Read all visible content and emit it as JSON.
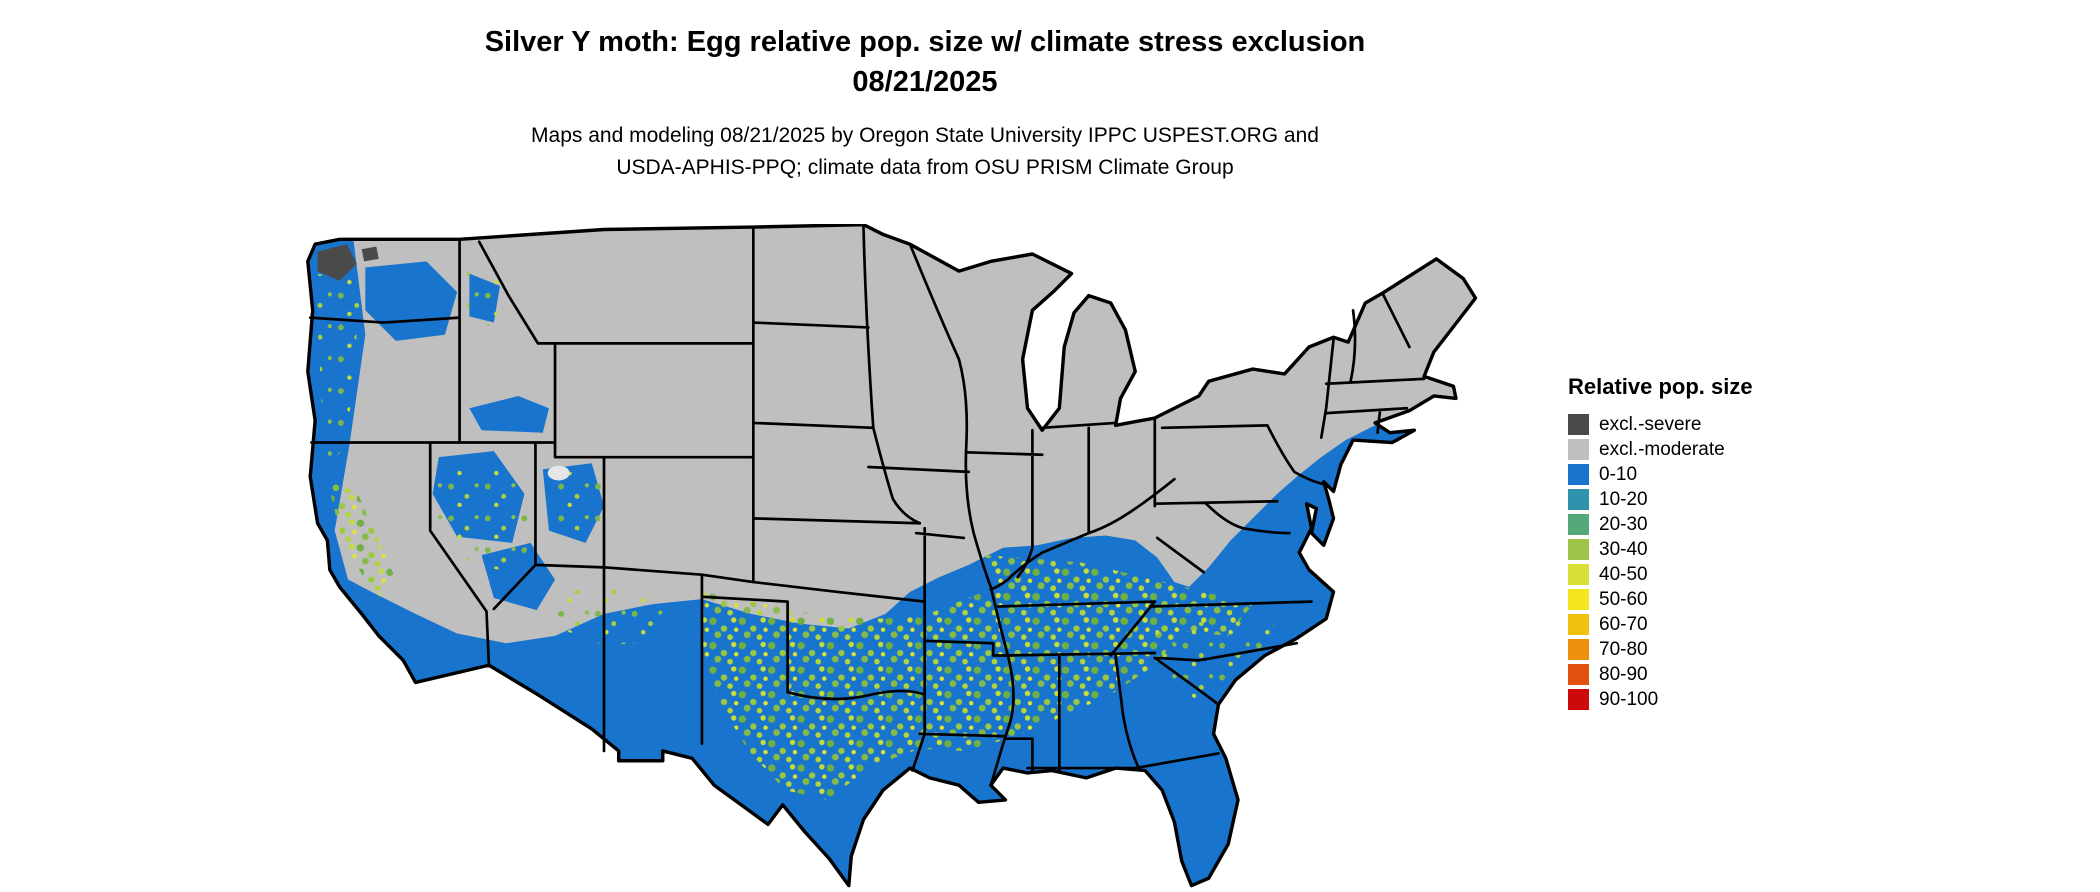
{
  "title": {
    "line1": "Silver Y moth: Egg relative pop. size w/ climate stress exclusion",
    "line2": "08/21/2025"
  },
  "subtitle": {
    "line1": "Maps and modeling 08/21/2025 by Oregon State University IPPC USPEST.ORG and",
    "line2": "USDA-APHIS-PPQ; climate data from OSU PRISM Climate Group"
  },
  "legend": {
    "title": "Relative pop. size",
    "items": [
      {
        "label": "excl.-severe",
        "color": "#4a4a4a"
      },
      {
        "label": "excl.-moderate",
        "color": "#bfbfbf"
      },
      {
        "label": "0-10",
        "color": "#1874cd"
      },
      {
        "label": "10-20",
        "color": "#3093ae"
      },
      {
        "label": "20-30",
        "color": "#55a978"
      },
      {
        "label": "30-40",
        "color": "#9ec54a"
      },
      {
        "label": "40-50",
        "color": "#d7e137"
      },
      {
        "label": "50-60",
        "color": "#f5e61f"
      },
      {
        "label": "60-70",
        "color": "#f2c00e"
      },
      {
        "label": "70-80",
        "color": "#ef8f10"
      },
      {
        "label": "80-90",
        "color": "#e2500e"
      },
      {
        "label": "90-100",
        "color": "#cc0a0a"
      }
    ]
  },
  "map": {
    "region": "Contiguous United States",
    "background_color": "#ffffff",
    "excluded_moderate_color": "#bfbfbf",
    "excluded_severe_color": "#4a4a4a",
    "low_population_color": "#1874cd",
    "border_color": "#000000",
    "summary": "Northern states shown as excluded (gray); southern tier, Southeast, Gulf Coast, Florida, Atlantic coastal plain and far-western valleys shown in blue (0-10) with green/yellow (20-50) mottling across central Texas, Oklahoma, the mid-South and the California Central Valley; small severe-exclusion patch in northwest Washington."
  }
}
